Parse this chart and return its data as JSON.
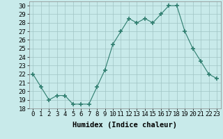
{
  "x": [
    0,
    1,
    2,
    3,
    4,
    5,
    6,
    7,
    8,
    9,
    10,
    11,
    12,
    13,
    14,
    15,
    16,
    17,
    18,
    19,
    20,
    21,
    22,
    23
  ],
  "y": [
    22,
    20.5,
    19,
    19.5,
    19.5,
    18.5,
    18.5,
    18.5,
    20.5,
    22.5,
    25.5,
    27,
    28.5,
    28,
    28.5,
    28,
    29,
    30,
    30,
    27,
    25,
    23.5,
    22,
    21.5
  ],
  "line_color": "#2e7d6e",
  "marker": "+",
  "marker_size": 5,
  "bg_color": "#c8eaea",
  "grid_color": "#a0c4c4",
  "xlabel": "Humidex (Indice chaleur)",
  "xlim": [
    -0.5,
    23.5
  ],
  "ylim": [
    18,
    30.5
  ],
  "yticks": [
    18,
    19,
    20,
    21,
    22,
    23,
    24,
    25,
    26,
    27,
    28,
    29,
    30
  ],
  "xticks": [
    0,
    1,
    2,
    3,
    4,
    5,
    6,
    7,
    8,
    9,
    10,
    11,
    12,
    13,
    14,
    15,
    16,
    17,
    18,
    19,
    20,
    21,
    22,
    23
  ],
  "tick_fontsize": 6.5,
  "label_fontsize": 7.5
}
